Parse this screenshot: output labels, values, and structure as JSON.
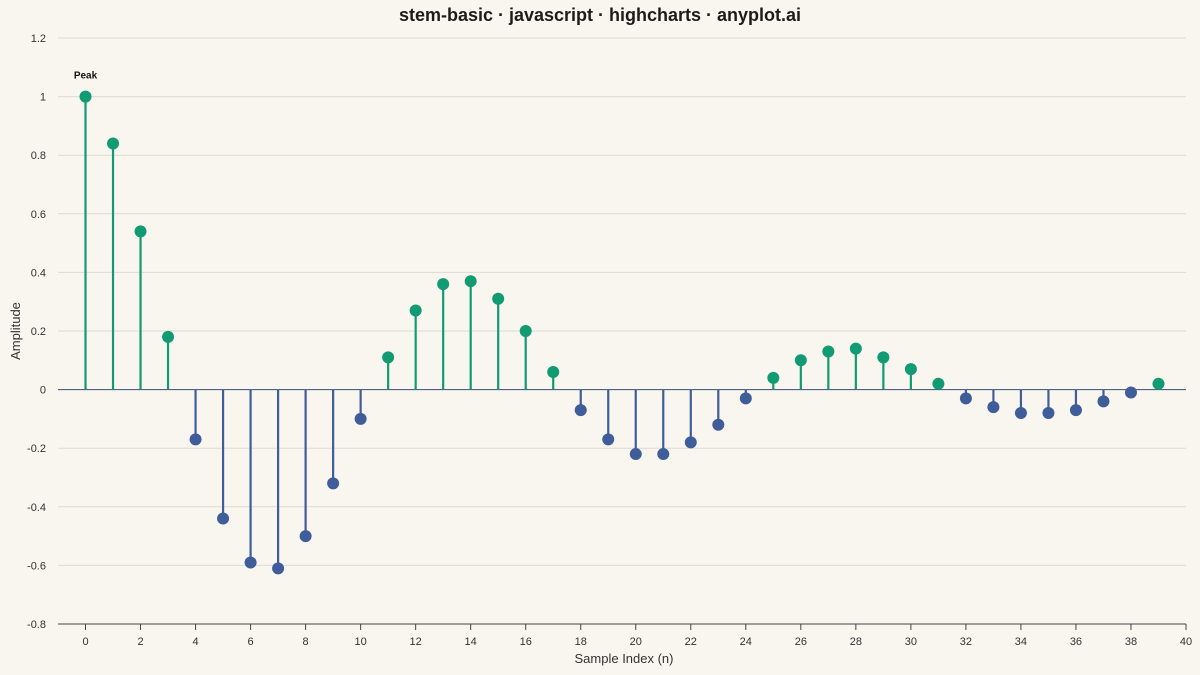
{
  "chart_data": {
    "type": "stem",
    "title": "stem-basic · javascript · highcharts · anyplot.ai",
    "xlabel": "Sample Index (n)",
    "ylabel": "Amplitude",
    "xlim": [
      -1,
      40
    ],
    "ylim": [
      -0.8,
      1.2
    ],
    "xticks": [
      0,
      2,
      4,
      6,
      8,
      10,
      12,
      14,
      16,
      18,
      20,
      22,
      24,
      26,
      28,
      30,
      32,
      34,
      36,
      38,
      40
    ],
    "yticks": [
      -0.8,
      -0.6,
      -0.4,
      -0.2,
      0,
      0.2,
      0.4,
      0.6,
      0.8,
      1,
      1.2
    ],
    "ytick_labels": [
      "-0.8",
      "-0.6",
      "-0.4",
      "-0.2",
      "0",
      "0.2",
      "0.4",
      "0.6",
      "0.8",
      "1",
      "1.2"
    ],
    "grid": true,
    "colors": {
      "positive": "#119B72",
      "negative": "#3F5D9A"
    },
    "x": [
      0,
      1,
      2,
      3,
      4,
      5,
      6,
      7,
      8,
      9,
      10,
      11,
      12,
      13,
      14,
      15,
      16,
      17,
      18,
      19,
      20,
      21,
      22,
      23,
      24,
      25,
      26,
      27,
      28,
      29,
      30,
      31,
      32,
      33,
      34,
      35,
      36,
      37,
      38,
      39
    ],
    "values": [
      1.0,
      0.84,
      0.54,
      0.18,
      -0.17,
      -0.44,
      -0.59,
      -0.61,
      -0.5,
      -0.32,
      -0.1,
      0.11,
      0.27,
      0.36,
      0.37,
      0.31,
      0.2,
      0.06,
      -0.07,
      -0.17,
      -0.22,
      -0.22,
      -0.18,
      -0.12,
      -0.03,
      0.04,
      0.1,
      0.13,
      0.14,
      0.11,
      0.07,
      0.02,
      -0.03,
      -0.06,
      -0.08,
      -0.08,
      -0.07,
      -0.04,
      -0.01,
      0.02
    ],
    "annotations": [
      {
        "x": 0,
        "y": 1.0,
        "text": "Peak"
      }
    ]
  }
}
